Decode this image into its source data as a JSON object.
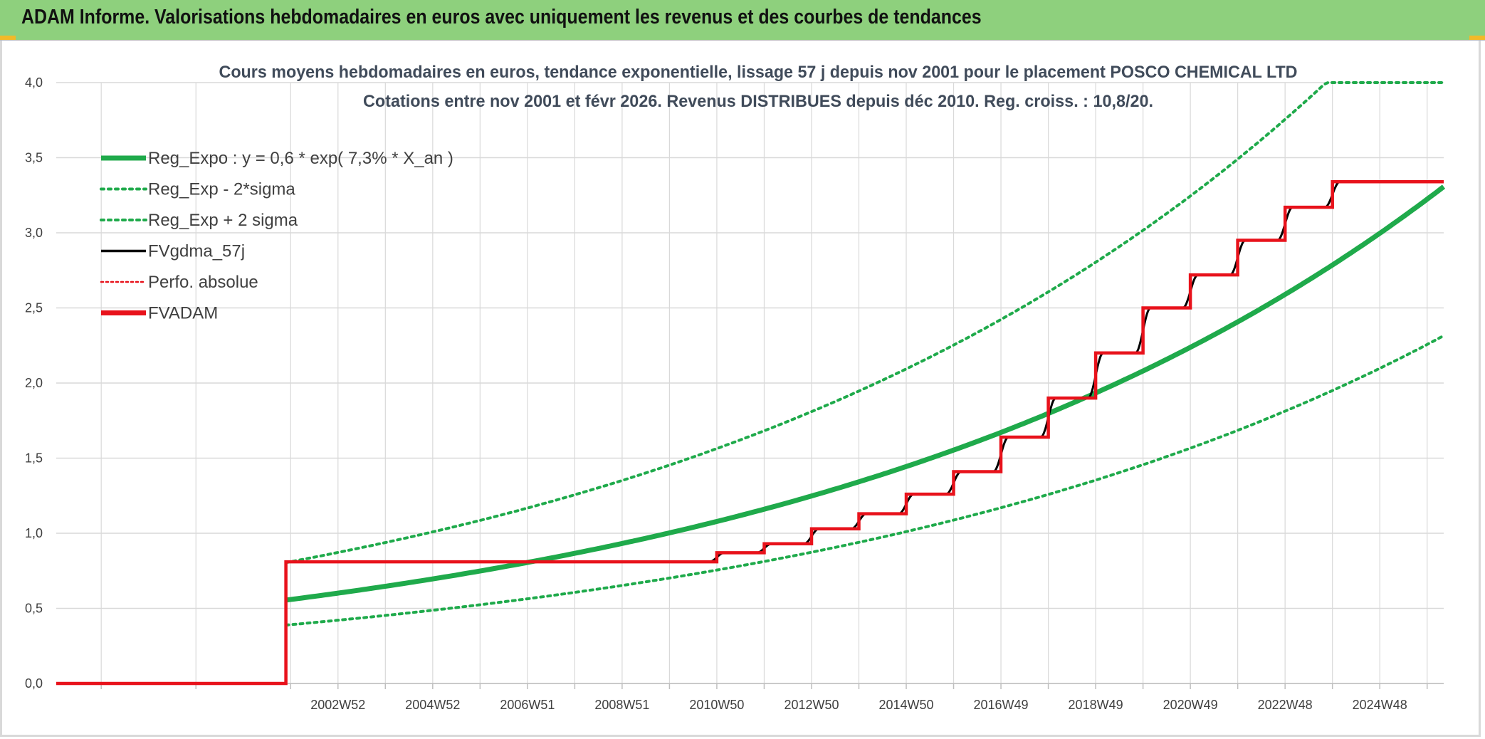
{
  "header": {
    "title": "ADAM Informe. Valorisations hebdomadaires en euros avec uniquement les revenus et des courbes de tendances"
  },
  "colors": {
    "banner": "#8ed07d",
    "corner": "#f2b928",
    "trend": "#1faa4b",
    "black": "#000000",
    "red": "#e8121b",
    "grid": "#d9d9d9"
  },
  "chart_data": {
    "type": "line",
    "title_lines": [
      "Cours moyens hebdomadaires en euros, tendance exponentielle, lissage 57 j depuis nov 2001 pour le placement POSCO CHEMICAL LTD",
      "Cotations entre nov 2001 et févr 2026. Revenus DISTRIBUES depuis déc 2010. Reg. croiss. : 10,8/20."
    ],
    "xlim": [
      1997.0,
      2026.3
    ],
    "ylim": [
      0,
      4.0
    ],
    "y_ticks": [
      0,
      0.5,
      1.0,
      1.5,
      2.0,
      2.5,
      3.0,
      3.5,
      4.0
    ],
    "y_tick_labels": [
      "0,0",
      "0,5",
      "1,0",
      "1,5",
      "2,0",
      "2,5",
      "3,0",
      "3,5",
      "4,0"
    ],
    "x_ticks": [
      {
        "x": 2002.95,
        "label": "2002W52"
      },
      {
        "x": 2004.95,
        "label": "2004W52"
      },
      {
        "x": 2006.95,
        "label": "2006W51"
      },
      {
        "x": 2008.95,
        "label": "2008W51"
      },
      {
        "x": 2010.95,
        "label": "2010W50"
      },
      {
        "x": 2012.95,
        "label": "2012W50"
      },
      {
        "x": 2014.95,
        "label": "2014W50"
      },
      {
        "x": 2016.95,
        "label": "2016W49"
      },
      {
        "x": 2018.95,
        "label": "2018W49"
      },
      {
        "x": 2020.95,
        "label": "2020W49"
      },
      {
        "x": 2022.95,
        "label": "2022W48"
      },
      {
        "x": 2024.95,
        "label": "2024W48"
      }
    ],
    "x_grid_minor": [
      1997.95,
      1999.95,
      2001.95,
      2003.95,
      2005.95,
      2007.95,
      2009.95,
      2011.95,
      2013.95,
      2015.95,
      2017.95,
      2019.95,
      2021.95,
      2023.95,
      2025.95
    ],
    "legend": [
      {
        "name": "Reg_Expo : y = 0,6 * exp( 7,3% *  X_an )",
        "style": "solid-thick",
        "color": "#1faa4b"
      },
      {
        "name": "Reg_Exp - 2*sigma",
        "style": "dotted",
        "color": "#1faa4b"
      },
      {
        "name": "Reg_Exp + 2 sigma",
        "style": "dotted",
        "color": "#1faa4b"
      },
      {
        "name": "FVgdma_57j",
        "style": "solid",
        "color": "#000000"
      },
      {
        "name": "Perfo. absolue",
        "style": "dotted-thin",
        "color": "#e8121b"
      },
      {
        "name": "FVADAM",
        "style": "solid-thick",
        "color": "#e8121b"
      }
    ],
    "trend": {
      "a": 0.555,
      "rate": 0.073,
      "x0": 2001.85,
      "x_end": 2026.3,
      "lower_factor": 0.7,
      "upper_factor": 1.45,
      "upper_cap": 4.0
    },
    "fvadam_steps": [
      {
        "x": 1997.0,
        "y": 0
      },
      {
        "x": 2001.85,
        "y": 0
      },
      {
        "x": 2001.85,
        "y": 0.81
      },
      {
        "x": 2010.95,
        "y": 0.81
      },
      {
        "x": 2010.95,
        "y": 0.87
      },
      {
        "x": 2011.95,
        "y": 0.87
      },
      {
        "x": 2011.95,
        "y": 0.93
      },
      {
        "x": 2012.95,
        "y": 0.93
      },
      {
        "x": 2012.95,
        "y": 1.03
      },
      {
        "x": 2013.95,
        "y": 1.03
      },
      {
        "x": 2013.95,
        "y": 1.13
      },
      {
        "x": 2014.95,
        "y": 1.13
      },
      {
        "x": 2014.95,
        "y": 1.26
      },
      {
        "x": 2015.95,
        "y": 1.26
      },
      {
        "x": 2015.95,
        "y": 1.41
      },
      {
        "x": 2016.95,
        "y": 1.41
      },
      {
        "x": 2016.95,
        "y": 1.64
      },
      {
        "x": 2017.95,
        "y": 1.64
      },
      {
        "x": 2017.95,
        "y": 1.9
      },
      {
        "x": 2018.95,
        "y": 1.9
      },
      {
        "x": 2018.95,
        "y": 2.2
      },
      {
        "x": 2019.95,
        "y": 2.2
      },
      {
        "x": 2019.95,
        "y": 2.5
      },
      {
        "x": 2020.95,
        "y": 2.5
      },
      {
        "x": 2020.95,
        "y": 2.72
      },
      {
        "x": 2021.95,
        "y": 2.72
      },
      {
        "x": 2021.95,
        "y": 2.95
      },
      {
        "x": 2022.95,
        "y": 2.95
      },
      {
        "x": 2022.95,
        "y": 3.17
      },
      {
        "x": 2023.95,
        "y": 3.17
      },
      {
        "x": 2023.95,
        "y": 3.34
      },
      {
        "x": 2026.3,
        "y": 3.34
      }
    ],
    "smooth_ramp_years": 0.16
  }
}
